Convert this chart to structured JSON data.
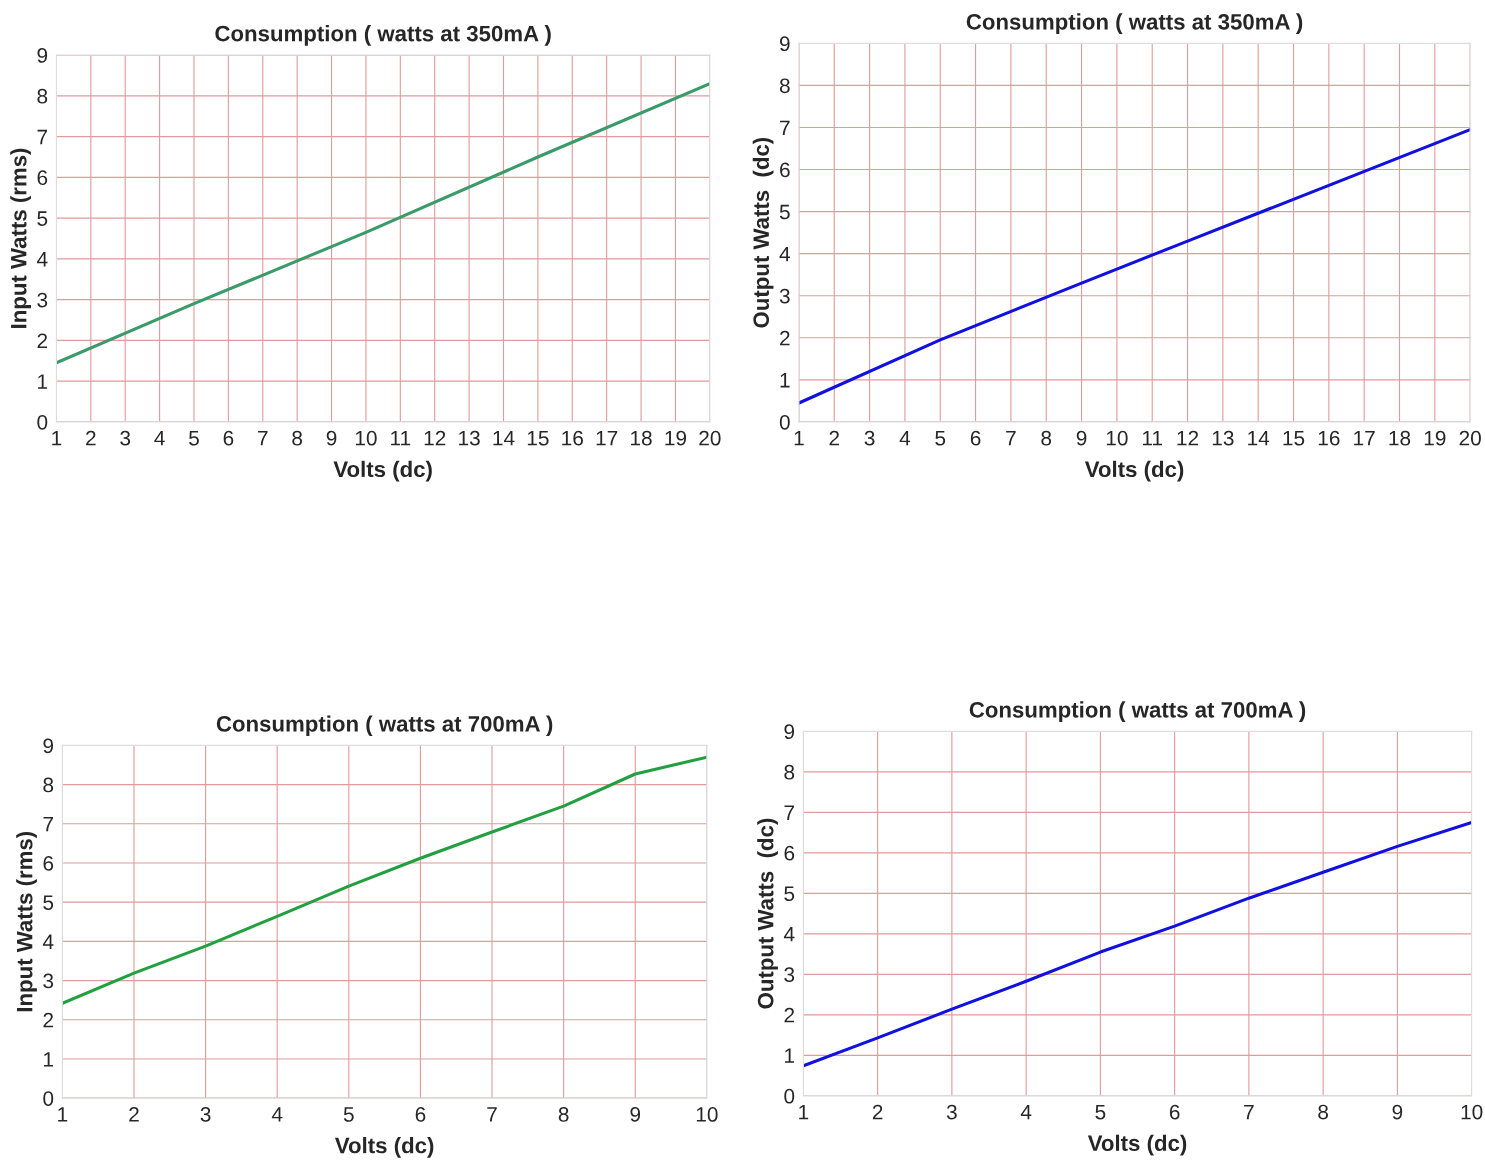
{
  "chart_data": [
    {
      "type": "line",
      "title": "Consumption ( watts at 350mA )",
      "xlabel": "Volts (dc)",
      "ylabel": "Input Watts (rms)",
      "xlim": [
        1,
        20
      ],
      "xticks": [
        1,
        2,
        3,
        4,
        5,
        6,
        7,
        8,
        9,
        10,
        11,
        12,
        13,
        14,
        15,
        16,
        17,
        18,
        19,
        20
      ],
      "ylim": [
        0,
        9
      ],
      "yticks": [
        0,
        1,
        2,
        3,
        4,
        5,
        6,
        7,
        8,
        9
      ],
      "grid": true,
      "marker": "none",
      "line_style": "solid",
      "series": [
        {
          "color": "#3a9a6a",
          "x": [
            1,
            5,
            10,
            15,
            20
          ],
          "values": [
            1.45,
            2.9,
            4.65,
            6.5,
            8.3
          ]
        }
      ]
    },
    {
      "type": "line",
      "title": "Consumption ( watts at 350mA )",
      "xlabel": "Volts (dc)",
      "ylabel": "Output Watts  (dc)",
      "xlim": [
        1,
        20
      ],
      "xticks": [
        1,
        2,
        3,
        4,
        5,
        6,
        7,
        8,
        9,
        10,
        11,
        12,
        13,
        14,
        15,
        16,
        17,
        18,
        19,
        20
      ],
      "ylim": [
        0,
        9
      ],
      "yticks": [
        0,
        1,
        2,
        3,
        4,
        5,
        6,
        7,
        8,
        9
      ],
      "grid": true,
      "marker": "none",
      "line_style": "solid",
      "series": [
        {
          "color": "#1010e0",
          "x": [
            1,
            5,
            9,
            12,
            20
          ],
          "values": [
            0.45,
            1.95,
            3.3,
            4.3,
            6.95
          ]
        }
      ]
    },
    {
      "type": "line",
      "title": "Consumption ( watts at 700mA )",
      "xlabel": "Volts (dc)",
      "ylabel": "Input Watts (rms)",
      "xlim": [
        1,
        10
      ],
      "xticks": [
        1,
        2,
        3,
        4,
        5,
        6,
        7,
        8,
        9,
        10
      ],
      "ylim": [
        0,
        9
      ],
      "yticks": [
        0,
        1,
        2,
        3,
        4,
        5,
        6,
        7,
        8,
        9
      ],
      "grid": true,
      "marker": "none",
      "line_style": "solid",
      "series": [
        {
          "color": "#22a040",
          "x": [
            1,
            2,
            3,
            4,
            5,
            6,
            7,
            8,
            9,
            10
          ],
          "values": [
            2.42,
            3.19,
            3.88,
            4.64,
            5.41,
            6.12,
            6.79,
            7.45,
            8.27,
            8.7
          ]
        }
      ]
    },
    {
      "type": "line",
      "title": "Consumption ( watts at 700mA )",
      "xlabel": "Volts (dc)",
      "ylabel": "Output Watts  (dc)",
      "xlim": [
        1,
        10
      ],
      "xticks": [
        1,
        2,
        3,
        4,
        5,
        6,
        7,
        8,
        9,
        10
      ],
      "ylim": [
        0,
        9
      ],
      "yticks": [
        0,
        1,
        2,
        3,
        4,
        5,
        6,
        7,
        8,
        9
      ],
      "grid": true,
      "marker": "none",
      "line_style": "solid",
      "series": [
        {
          "color": "#1010e0",
          "x": [
            1,
            2,
            3,
            4,
            5,
            6,
            7,
            8,
            9,
            10
          ],
          "values": [
            0.74,
            1.43,
            2.14,
            2.83,
            3.55,
            4.19,
            4.88,
            5.52,
            6.16,
            6.75
          ]
        }
      ]
    }
  ]
}
